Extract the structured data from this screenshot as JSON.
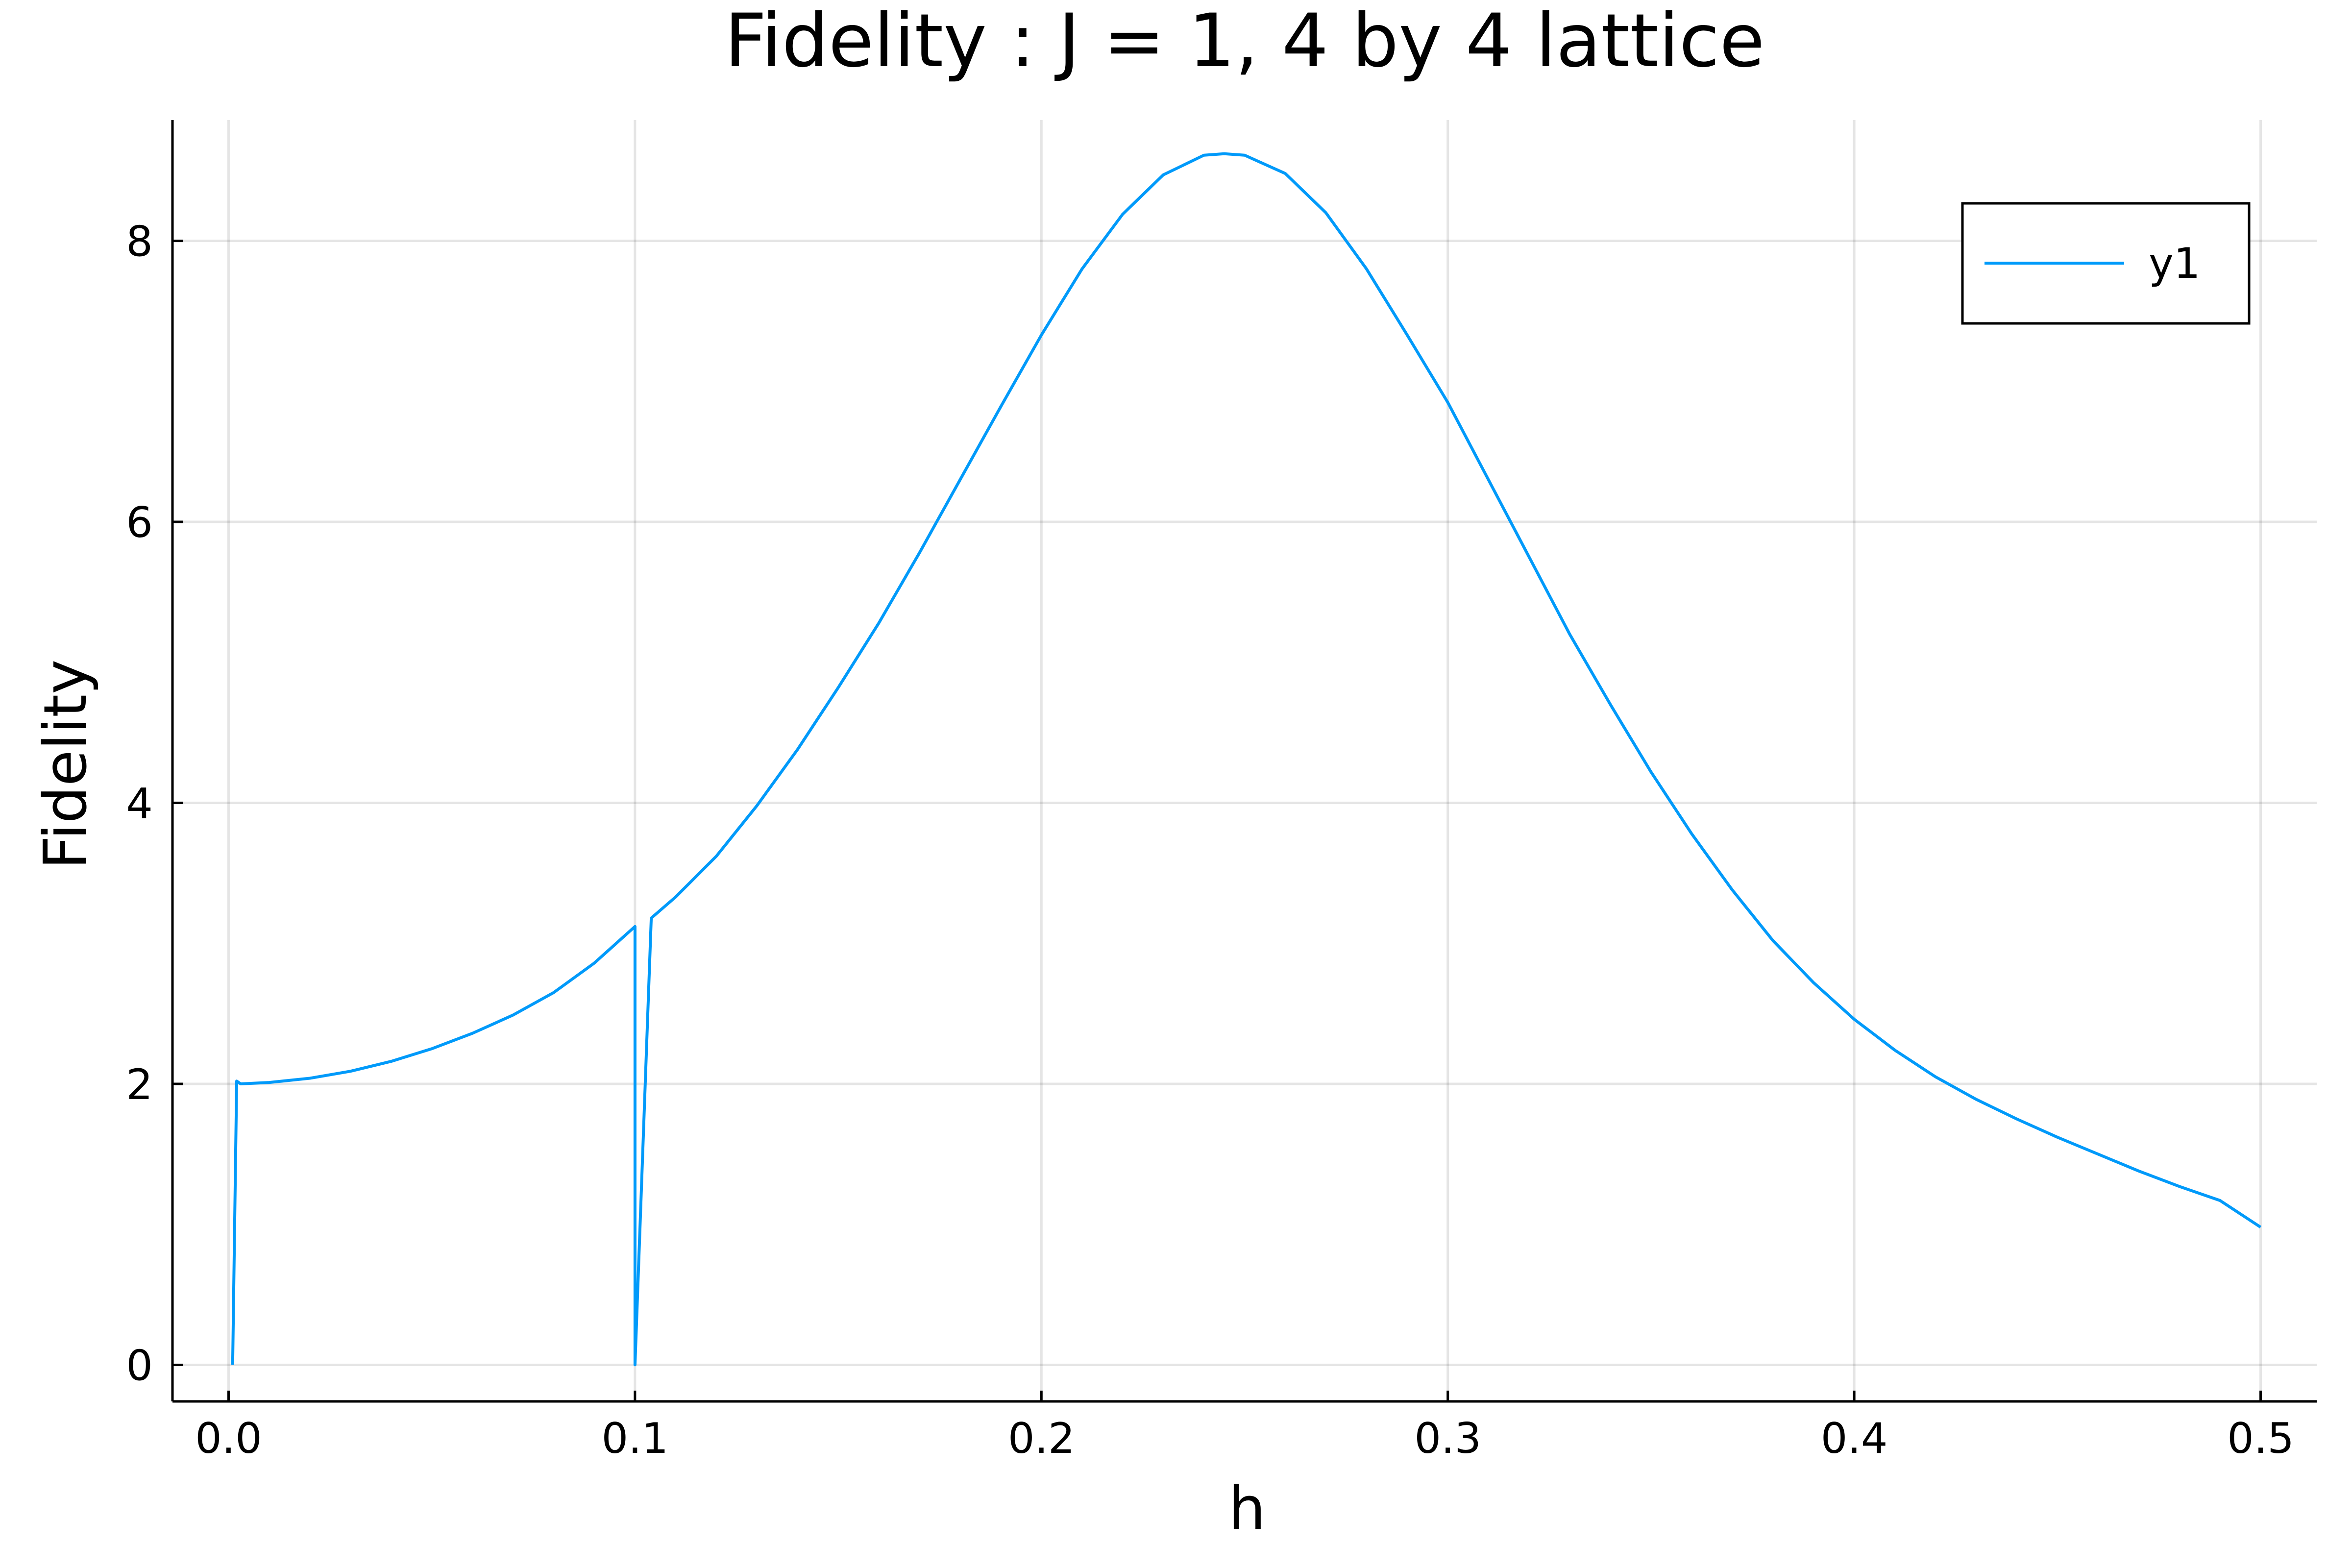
{
  "chart_data": {
    "type": "line",
    "title": "Fidelity : J = 1, 4 by 4 lattice",
    "xlabel": "h",
    "ylabel": "Fidelity",
    "xlim": [
      -0.0138,
      0.5138
    ],
    "ylim": [
      -0.26,
      8.86
    ],
    "xticks": [
      0.0,
      0.1,
      0.2,
      0.3,
      0.4,
      0.5
    ],
    "xtick_labels": [
      "0.0",
      "0.1",
      "0.2",
      "0.3",
      "0.4",
      "0.5"
    ],
    "yticks": [
      0,
      2,
      4,
      6,
      8
    ],
    "ytick_labels": [
      "0",
      "2",
      "4",
      "6",
      "8"
    ],
    "grid": true,
    "legend_position": "top-right",
    "colors": {
      "series": "#009AFA",
      "axis": "#000000"
    },
    "series": [
      {
        "name": "y1",
        "points": [
          [
            0.001,
            0.0
          ],
          [
            0.002,
            2.02
          ],
          [
            0.003,
            2.0
          ],
          [
            0.01,
            2.01
          ],
          [
            0.02,
            2.04
          ],
          [
            0.03,
            2.09
          ],
          [
            0.04,
            2.16
          ],
          [
            0.05,
            2.25
          ],
          [
            0.06,
            2.36
          ],
          [
            0.07,
            2.49
          ],
          [
            0.08,
            2.65
          ],
          [
            0.09,
            2.86
          ],
          [
            0.1,
            3.12
          ],
          [
            0.1,
            0.0
          ],
          [
            0.104,
            3.18
          ],
          [
            0.11,
            3.33
          ],
          [
            0.12,
            3.62
          ],
          [
            0.13,
            3.98
          ],
          [
            0.14,
            4.38
          ],
          [
            0.15,
            4.82
          ],
          [
            0.16,
            5.28
          ],
          [
            0.17,
            5.78
          ],
          [
            0.18,
            6.3
          ],
          [
            0.19,
            6.82
          ],
          [
            0.2,
            7.33
          ],
          [
            0.21,
            7.8
          ],
          [
            0.22,
            8.19
          ],
          [
            0.23,
            8.47
          ],
          [
            0.24,
            8.61
          ],
          [
            0.245,
            8.62
          ],
          [
            0.25,
            8.61
          ],
          [
            0.26,
            8.48
          ],
          [
            0.27,
            8.2
          ],
          [
            0.28,
            7.8
          ],
          [
            0.29,
            7.33
          ],
          [
            0.3,
            6.85
          ],
          [
            0.31,
            6.3
          ],
          [
            0.32,
            5.75
          ],
          [
            0.33,
            5.2
          ],
          [
            0.34,
            4.7
          ],
          [
            0.35,
            4.22
          ],
          [
            0.36,
            3.78
          ],
          [
            0.37,
            3.38
          ],
          [
            0.38,
            3.02
          ],
          [
            0.39,
            2.72
          ],
          [
            0.4,
            2.46
          ],
          [
            0.41,
            2.24
          ],
          [
            0.42,
            2.05
          ],
          [
            0.43,
            1.89
          ],
          [
            0.44,
            1.75
          ],
          [
            0.45,
            1.62
          ],
          [
            0.46,
            1.5
          ],
          [
            0.47,
            1.38
          ],
          [
            0.48,
            1.27
          ],
          [
            0.49,
            1.17
          ],
          [
            0.5,
            0.98
          ]
        ]
      }
    ]
  }
}
